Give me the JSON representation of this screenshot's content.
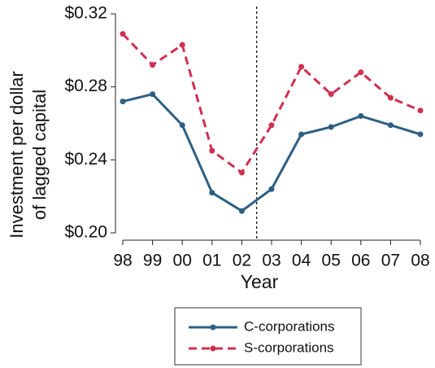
{
  "chart_data": {
    "type": "line",
    "xlabel": "Year",
    "ylabel": [
      "Investment per dollar",
      "of lagged capital"
    ],
    "categories": [
      "98",
      "99",
      "00",
      "01",
      "02",
      "03",
      "04",
      "05",
      "06",
      "07",
      "08"
    ],
    "series": [
      {
        "name": "C-corporations",
        "color": "#2d5f84",
        "linestyle": "solid",
        "values": [
          0.272,
          0.276,
          0.259,
          0.222,
          0.212,
          0.224,
          0.254,
          0.258,
          0.264,
          0.259,
          0.254
        ]
      },
      {
        "name": "S-corporations",
        "color": "#d0304f",
        "linestyle": "dashed",
        "values": [
          0.309,
          0.292,
          0.303,
          0.245,
          0.233,
          0.259,
          0.291,
          0.276,
          0.288,
          0.274,
          0.267
        ]
      }
    ],
    "ylim": [
      0.2,
      0.32
    ],
    "yticks": [
      {
        "value": 0.2,
        "label": "$0.20"
      },
      {
        "value": 0.24,
        "label": "$0.24"
      },
      {
        "value": 0.28,
        "label": "$0.28"
      },
      {
        "value": 0.32,
        "label": "$0.32"
      }
    ],
    "grid": false,
    "legend": "bottom"
  }
}
